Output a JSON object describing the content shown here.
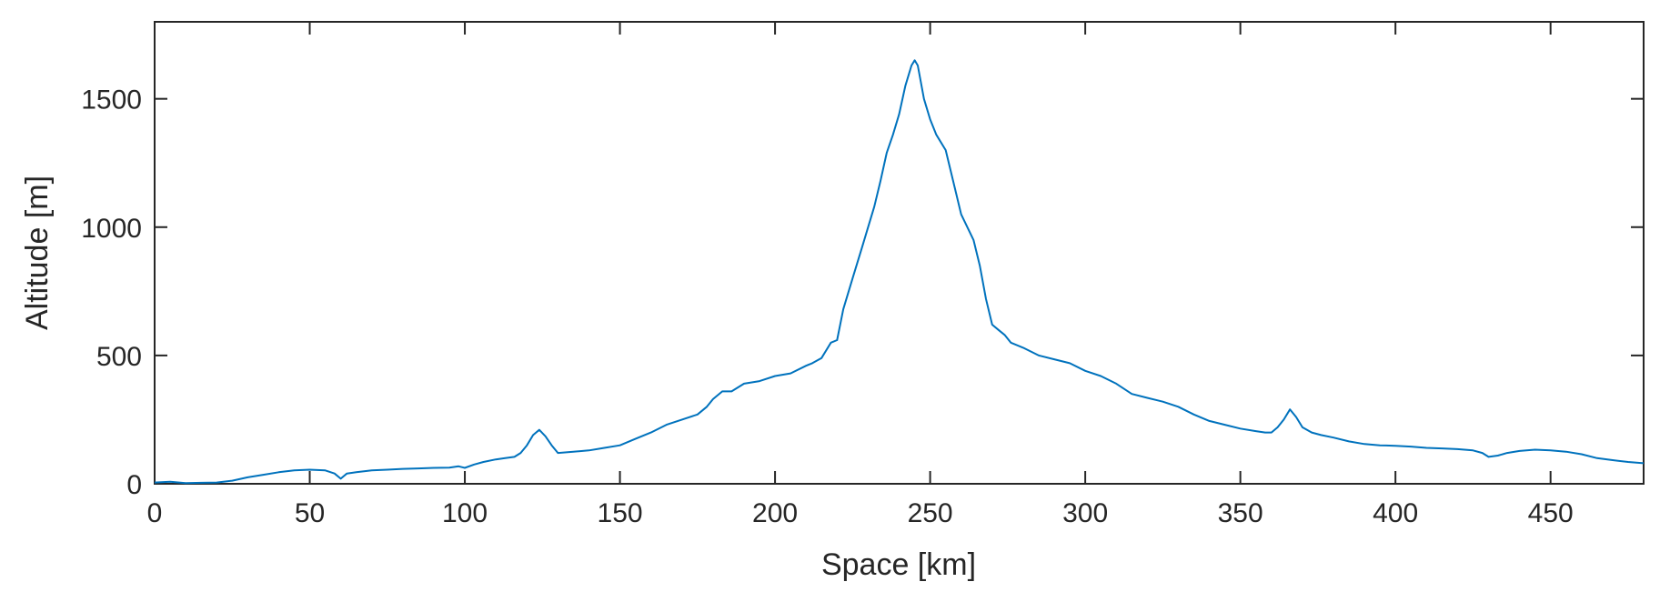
{
  "chart_data": {
    "type": "line",
    "title": "",
    "xlabel": "Space [km]",
    "ylabel": "Altitude [m]",
    "xlim": [
      0,
      480
    ],
    "ylim": [
      0,
      1800
    ],
    "xticks": [
      0,
      50,
      100,
      150,
      200,
      250,
      300,
      350,
      400,
      450
    ],
    "yticks": [
      0,
      500,
      1000,
      1500
    ],
    "grid": false,
    "series": [
      {
        "color": "#0072BD",
        "x": [
          0,
          5,
          10,
          15,
          20,
          25,
          30,
          35,
          40,
          45,
          50,
          55,
          58,
          60,
          62,
          65,
          70,
          75,
          80,
          85,
          90,
          95,
          98,
          100,
          103,
          106,
          110,
          113,
          116,
          118,
          120,
          122,
          124,
          126,
          128,
          130,
          135,
          140,
          145,
          150,
          155,
          160,
          165,
          170,
          175,
          178,
          180,
          183,
          186,
          190,
          195,
          200,
          205,
          210,
          212,
          215,
          218,
          220,
          222,
          225,
          228,
          230,
          232,
          234,
          236,
          238,
          240,
          242,
          244,
          245,
          246,
          248,
          250,
          252,
          255,
          258,
          260,
          262,
          264,
          266,
          268,
          270,
          272,
          274,
          276,
          280,
          285,
          290,
          295,
          300,
          305,
          310,
          315,
          320,
          325,
          330,
          335,
          340,
          345,
          350,
          355,
          358,
          360,
          362,
          364,
          366,
          368,
          370,
          373,
          376,
          380,
          385,
          390,
          395,
          400,
          405,
          410,
          415,
          420,
          425,
          428,
          430,
          433,
          436,
          440,
          445,
          450,
          455,
          460,
          465,
          470,
          475,
          480
        ],
        "y": [
          5,
          8,
          3,
          4,
          5,
          12,
          25,
          35,
          45,
          52,
          55,
          52,
          40,
          20,
          40,
          45,
          52,
          55,
          58,
          60,
          62,
          63,
          68,
          62,
          75,
          85,
          95,
          100,
          105,
          120,
          150,
          190,
          210,
          185,
          150,
          120,
          125,
          130,
          140,
          150,
          175,
          200,
          230,
          250,
          270,
          300,
          330,
          360,
          360,
          390,
          400,
          420,
          430,
          460,
          470,
          490,
          550,
          560,
          680,
          800,
          920,
          1000,
          1080,
          1180,
          1290,
          1360,
          1440,
          1550,
          1630,
          1650,
          1630,
          1500,
          1420,
          1360,
          1300,
          1150,
          1050,
          1000,
          950,
          850,
          720,
          620,
          600,
          580,
          550,
          530,
          500,
          485,
          470,
          440,
          420,
          390,
          350,
          335,
          320,
          300,
          270,
          245,
          230,
          215,
          205,
          200,
          200,
          220,
          250,
          290,
          260,
          220,
          200,
          190,
          180,
          165,
          155,
          150,
          148,
          145,
          140,
          138,
          135,
          130,
          120,
          105,
          110,
          120,
          128,
          133,
          130,
          125,
          115,
          100,
          92,
          85,
          80
        ]
      }
    ]
  }
}
